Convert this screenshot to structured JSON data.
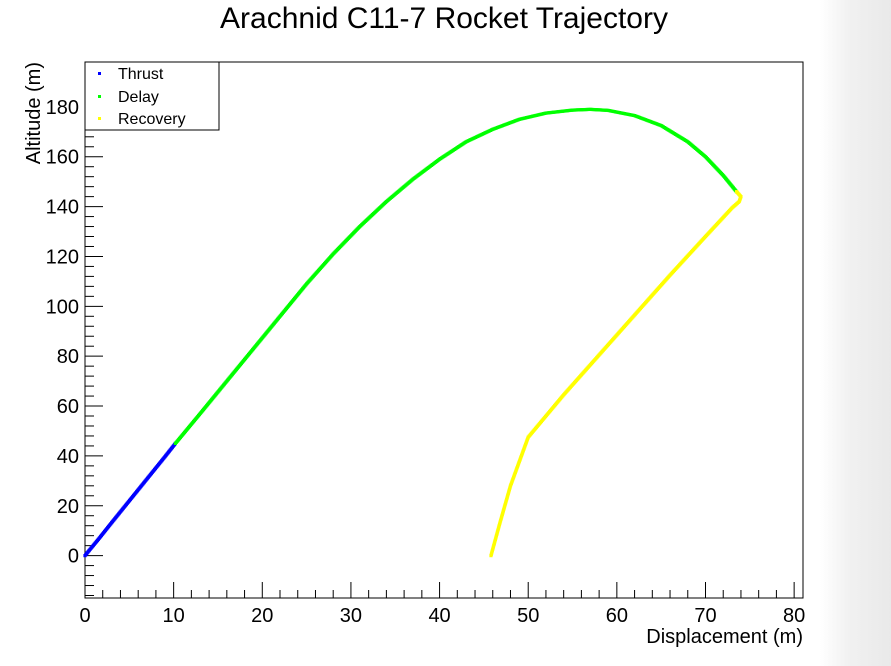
{
  "chart_data": {
    "type": "scatter",
    "title": "Arachnid C11-7 Rocket Trajectory",
    "xlabel": "Displacement (m)",
    "ylabel": "Altitude (m)",
    "xlim": [
      0,
      81
    ],
    "ylim": [
      -17,
      198
    ],
    "x_ticks": [
      0,
      10,
      20,
      30,
      40,
      50,
      60,
      70,
      80
    ],
    "y_ticks": [
      0,
      20,
      40,
      60,
      80,
      100,
      120,
      140,
      160,
      180
    ],
    "grid": false,
    "legend_position": "top-left",
    "series": [
      {
        "name": "Thrust",
        "color": "#0000ff",
        "points": [
          [
            0,
            0
          ],
          [
            0.5,
            2.2
          ],
          [
            1.5,
            6.5
          ],
          [
            3,
            13.2
          ],
          [
            4.5,
            19.8
          ],
          [
            6,
            26.4
          ],
          [
            7.5,
            33.0
          ],
          [
            9,
            39.6
          ],
          [
            10.2,
            45
          ]
        ]
      },
      {
        "name": "Delay",
        "color": "#00ff00",
        "points": [
          [
            10.2,
            45
          ],
          [
            13,
            57
          ],
          [
            16,
            70
          ],
          [
            19,
            83
          ],
          [
            22,
            96
          ],
          [
            25,
            109
          ],
          [
            28,
            121
          ],
          [
            31,
            132
          ],
          [
            34,
            142
          ],
          [
            37,
            151
          ],
          [
            40,
            159
          ],
          [
            43,
            166
          ],
          [
            46,
            171
          ],
          [
            49,
            175
          ],
          [
            52,
            177.5
          ],
          [
            55,
            178.7
          ],
          [
            57,
            179
          ],
          [
            59,
            178.6
          ],
          [
            62,
            176.5
          ],
          [
            65,
            172.5
          ],
          [
            68,
            166
          ],
          [
            70,
            160
          ],
          [
            72,
            152.5
          ],
          [
            73.5,
            146
          ]
        ]
      },
      {
        "name": "Recovery",
        "color": "#ffff00",
        "points": [
          [
            73.5,
            146
          ],
          [
            74,
            144
          ],
          [
            73.8,
            142
          ],
          [
            73,
            139.5
          ],
          [
            70,
            128
          ],
          [
            66,
            112.5
          ],
          [
            62,
            96.5
          ],
          [
            58,
            80.5
          ],
          [
            54,
            64.5
          ],
          [
            50,
            47.5
          ],
          [
            48,
            28
          ],
          [
            46.8,
            13
          ],
          [
            45.8,
            0
          ]
        ]
      }
    ]
  }
}
